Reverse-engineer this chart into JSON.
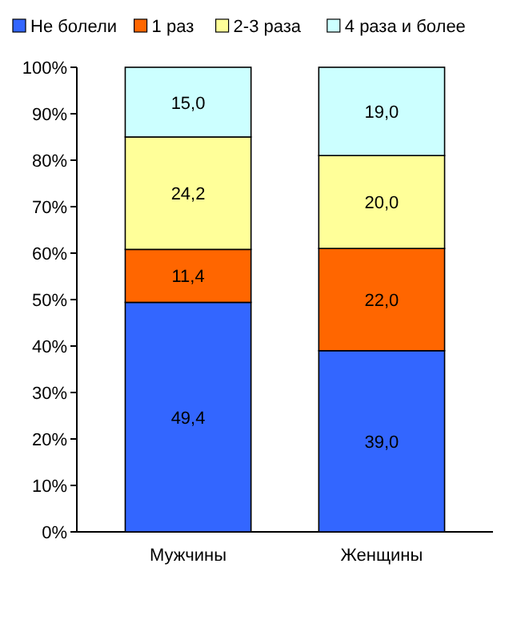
{
  "chart_data": {
    "type": "bar",
    "stacked": true,
    "categories": [
      "Мужчины",
      "Женщины"
    ],
    "series": [
      {
        "name": "Не болели",
        "color": "#3366ff",
        "values": [
          49.4,
          39.0
        ],
        "value_labels": [
          "49,4",
          "39,0"
        ]
      },
      {
        "name": "1 раз",
        "color": "#ff6600",
        "values": [
          11.4,
          22.0
        ],
        "value_labels": [
          "11,4",
          "22,0"
        ]
      },
      {
        "name": "2-3 раза",
        "color": "#ffff99",
        "values": [
          24.2,
          20.0
        ],
        "value_labels": [
          "24,2",
          "20,0"
        ]
      },
      {
        "name": "4 раза и более",
        "color": "#ccffff",
        "values": [
          15.0,
          19.0
        ],
        "value_labels": [
          "15,0",
          "19,0"
        ]
      }
    ],
    "ylim": [
      0,
      100
    ],
    "yticks": [
      {
        "value": 0,
        "label": "0%"
      },
      {
        "value": 10,
        "label": "10%"
      },
      {
        "value": 20,
        "label": "20%"
      },
      {
        "value": 30,
        "label": "30%"
      },
      {
        "value": 40,
        "label": "40%"
      },
      {
        "value": 50,
        "label": "50%"
      },
      {
        "value": 60,
        "label": "60%"
      },
      {
        "value": 70,
        "label": "70%"
      },
      {
        "value": 80,
        "label": "80%"
      },
      {
        "value": 90,
        "label": "90%"
      },
      {
        "value": 100,
        "label": "100%"
      }
    ],
    "legend": "top"
  }
}
